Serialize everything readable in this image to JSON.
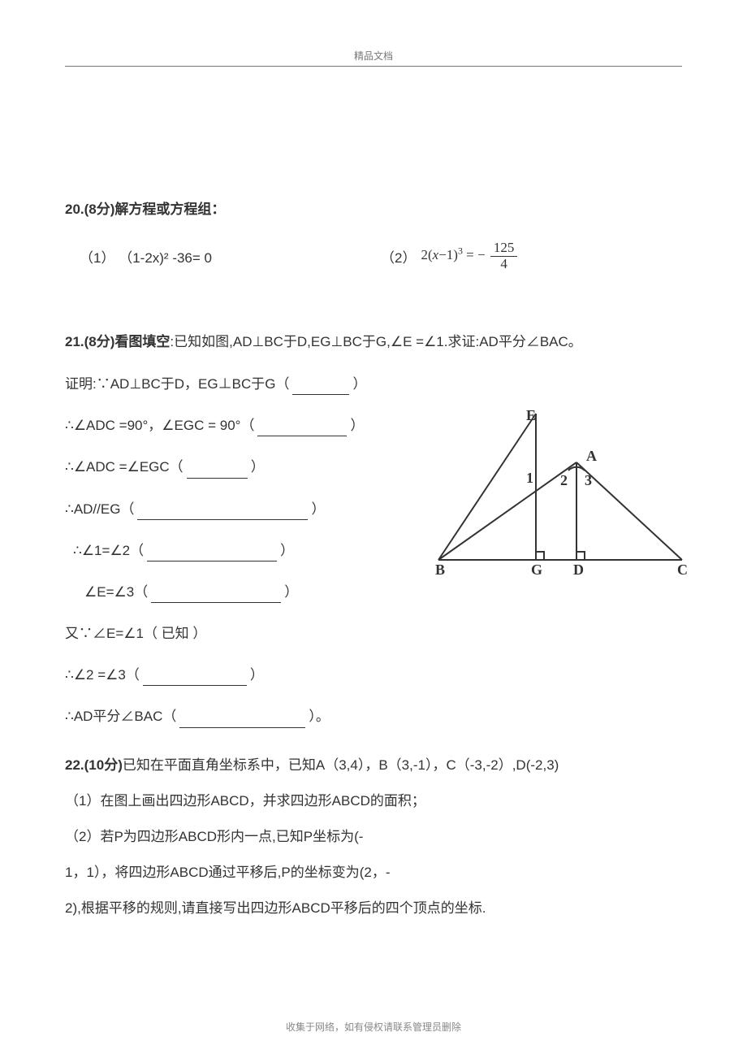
{
  "header": {
    "label": "精品文档"
  },
  "q20": {
    "heading_bold": "20.(8分)解方程或方程组：",
    "eq1_label": "（1）",
    "eq1_body": "（1-2x)² -36= 0",
    "eq2_label": "（2）",
    "eq2_prefix": "2(",
    "eq2_var": "x",
    "eq2_mid": "−1)",
    "eq2_exp": "3",
    "eq2_eq": " = −",
    "eq2_num": "125",
    "eq2_den": "4"
  },
  "q21": {
    "heading_bold": "21.(8分)看图填空",
    "heading_rest": ":已知如图,AD⊥BC于D,EG⊥BC于G,∠E =∠1.求证:AD平分∠BAC。",
    "lines": [
      {
        "pre": "证明:∵AD⊥BC于D，EG⊥BC于G（",
        "blank_w": 70,
        "post": "）"
      },
      {
        "pre": "∴∠ADC =90°，∠EGC = 90°（",
        "blank_w": 110,
        "post": "）"
      },
      {
        "pre": "∴∠ADC =∠EGC（",
        "blank_w": 75,
        "post": "）"
      },
      {
        "pre": "∴AD//EG（",
        "blank_w": 210,
        "post": "）",
        "indent": 0
      },
      {
        "pre": "∴∠1=∠2（",
        "blank_w": 160,
        "post": "）",
        "indent": 10
      },
      {
        "pre": "∠E=∠3（",
        "blank_w": 160,
        "post": "）",
        "indent": 24
      },
      {
        "pre": "又∵∠E=∠1（ 已知 ）",
        "blank_w": 0,
        "post": ""
      },
      {
        "pre": "∴∠2 =∠3（",
        "blank_w": 128,
        "post": "）"
      },
      {
        "pre": "∴AD平分∠BAC（",
        "blank_w": 155,
        "post": "）。"
      }
    ],
    "diagram": {
      "labels": {
        "E": "E",
        "A": "A",
        "B": "B",
        "G": "G",
        "D": "D",
        "C": "C",
        "n1": "1",
        "n2": "2",
        "n3": "3"
      },
      "colors": {
        "stroke": "#333333",
        "text": "#333333"
      }
    }
  },
  "q22": {
    "heading_bold": "22.(10分)",
    "heading_rest": "已知在平面直角坐标系中，已知A（3,4），B（3,-1），C（-3,-2）,D(-2,3)",
    "line1": "（1）在图上画出四边形ABCD，并求四边形ABCD的面积；",
    "line2": "（2）若P为四边形ABCD形内一点,已知P坐标为(-",
    "line3": "1，1），将四边形ABCD通过平移后,P的坐标变为(2，-",
    "line4": "2),根据平移的规则,请直接写出四边形ABCD平移后的四个顶点的坐标."
  },
  "footer": {
    "text": "收集于网络，如有侵权请联系管理员删除"
  }
}
